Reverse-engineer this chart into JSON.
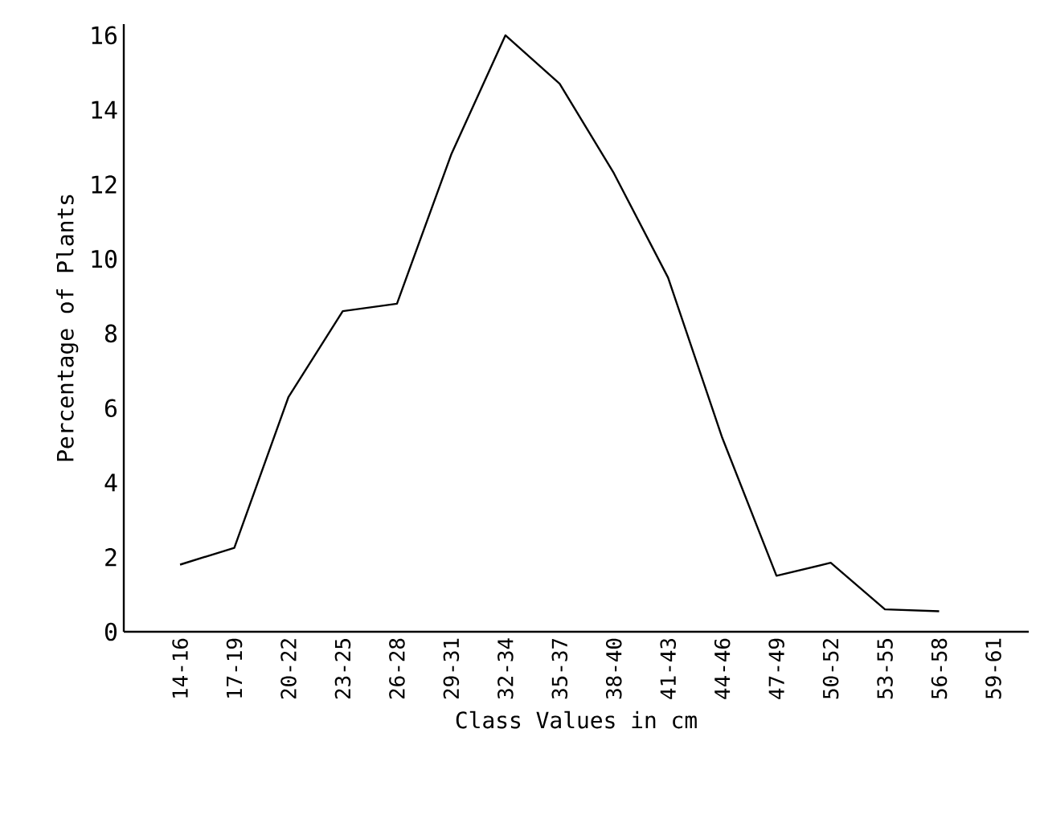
{
  "chart_data": {
    "type": "line",
    "categories": [
      "14-16",
      "17-19",
      "20-22",
      "23-25",
      "26-28",
      "29-31",
      "32-34",
      "35-37",
      "38-40",
      "41-43",
      "44-46",
      "47-49",
      "50-52",
      "53-55",
      "56-58",
      "59-61"
    ],
    "values": [
      1.8,
      2.25,
      6.3,
      8.6,
      8.8,
      12.8,
      16.0,
      14.7,
      12.3,
      9.5,
      5.2,
      1.5,
      1.85,
      0.6,
      0.55,
      null
    ],
    "color": "#000000",
    "xlabel": "Class Values in cm",
    "ylabel": "Percentage of Plants",
    "ylim": [
      0,
      16.3
    ],
    "yticks": [
      0,
      2,
      4,
      6,
      8,
      10,
      12,
      14,
      16
    ],
    "marker": "none",
    "line_style": "solid",
    "grid": false
  }
}
